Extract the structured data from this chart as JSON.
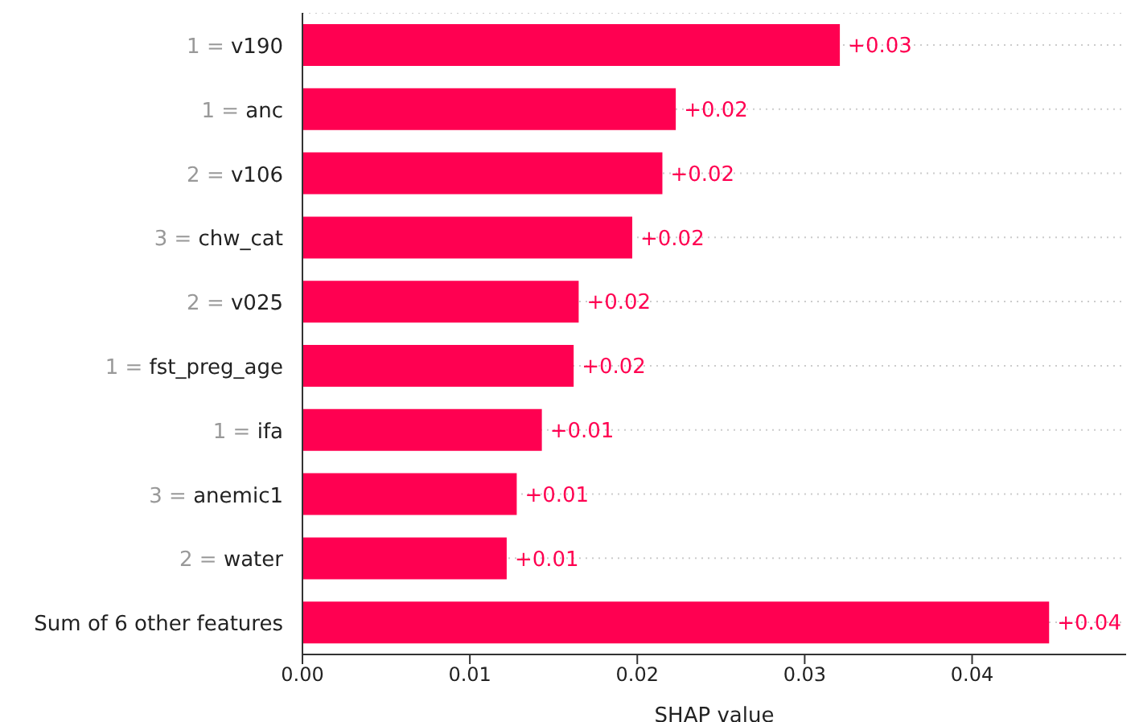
{
  "chart_data": {
    "type": "bar",
    "orientation": "horizontal",
    "xlabel": "SHAP value",
    "categories": [
      "1 = v190",
      "1 = anc",
      "2 = v106",
      "3 = chw_cat",
      "2 = v025",
      "1 = fst_preg_age",
      "1 = ifa",
      "3 = anemic1",
      "2 = water",
      "Sum of 6 other features"
    ],
    "values": [
      0.0321,
      0.0223,
      0.0215,
      0.0197,
      0.0165,
      0.0162,
      0.0143,
      0.0128,
      0.0122,
      0.0446
    ],
    "value_labels": [
      "+0.03",
      "+0.02",
      "+0.02",
      "+0.02",
      "+0.02",
      "+0.02",
      "+0.01",
      "+0.01",
      "+0.01",
      "+0.04"
    ],
    "color": "#ff0051",
    "xlim": [
      0,
      0.0492
    ],
    "xticks": [
      "0.00",
      0.01,
      0.02,
      0.03,
      0.04
    ],
    "grid": "y"
  }
}
